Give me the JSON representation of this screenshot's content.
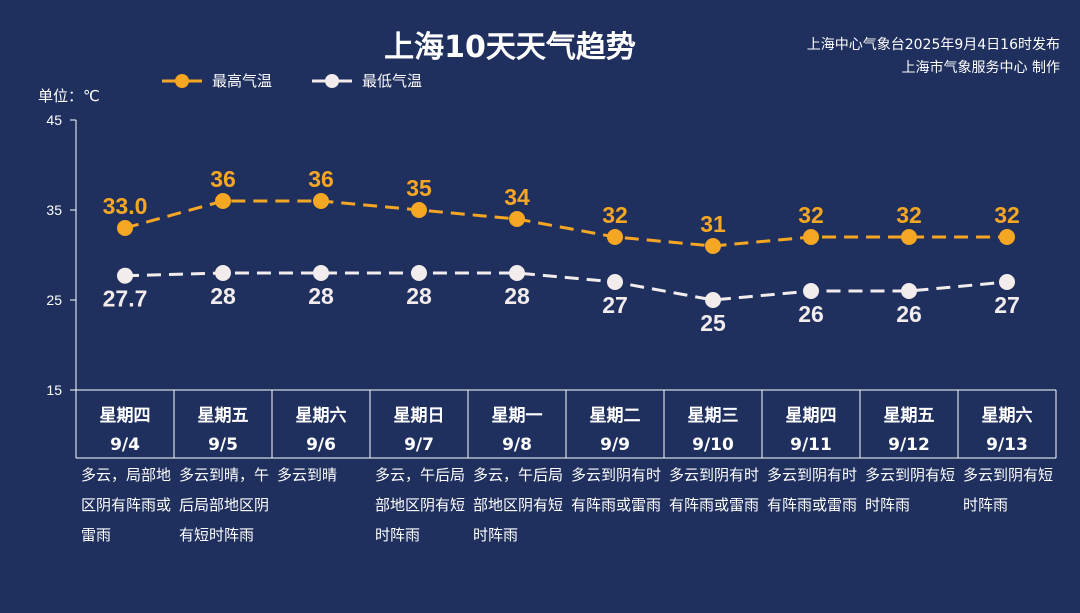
{
  "header": {
    "title": "上海10天天气趋势",
    "publisher_line1": "上海中心气象台2025年9月4日16时发布",
    "publisher_line2": "上海市气象服务中心 制作",
    "unit": "单位：℃"
  },
  "colors": {
    "background": "#1f2f5e",
    "high": "#f5a623",
    "low": "#f2ecec",
    "axis": "#ffffff"
  },
  "chart_data": {
    "type": "line",
    "title": "上海10天天气趋势",
    "ylabel": "单位：℃",
    "ylim": [
      15,
      45
    ],
    "yticks": [
      15,
      25,
      35,
      45
    ],
    "grid": false,
    "legend_position": "top-left",
    "weekdays": [
      "星期四",
      "星期五",
      "星期六",
      "星期日",
      "星期一",
      "星期二",
      "星期三",
      "星期四",
      "星期五",
      "星期六"
    ],
    "dates": [
      "9/4",
      "9/5",
      "9/6",
      "9/7",
      "9/8",
      "9/9",
      "9/10",
      "9/11",
      "9/12",
      "9/13"
    ],
    "series": [
      {
        "name": "最高气温",
        "values": [
          33.0,
          36,
          36,
          35,
          34,
          32,
          31,
          32,
          32,
          32
        ],
        "labels": [
          "33.0",
          "36",
          "36",
          "35",
          "34",
          "32",
          "31",
          "32",
          "32",
          "32"
        ],
        "color": "#f5a623"
      },
      {
        "name": "最低气温",
        "values": [
          27.7,
          28,
          28,
          28,
          28,
          27,
          25,
          26,
          26,
          27
        ],
        "labels": [
          "27.7",
          "28",
          "28",
          "28",
          "28",
          "27",
          "25",
          "26",
          "26",
          "27"
        ],
        "color": "#f2ecec"
      }
    ],
    "descriptions": [
      "多云，局部地区阴有阵雨或雷雨",
      "多云到晴，午后局部地区阴有短时阵雨",
      "多云到晴",
      "多云，午后局部地区阴有短时阵雨",
      "多云，午后局部地区阴有短时阵雨",
      "多云到阴有时有阵雨或雷雨",
      "多云到阴有时有阵雨或雷雨",
      "多云到阴有时有阵雨或雷雨",
      "多云到阴有短时阵雨",
      "多云到阴有短时阵雨"
    ]
  }
}
